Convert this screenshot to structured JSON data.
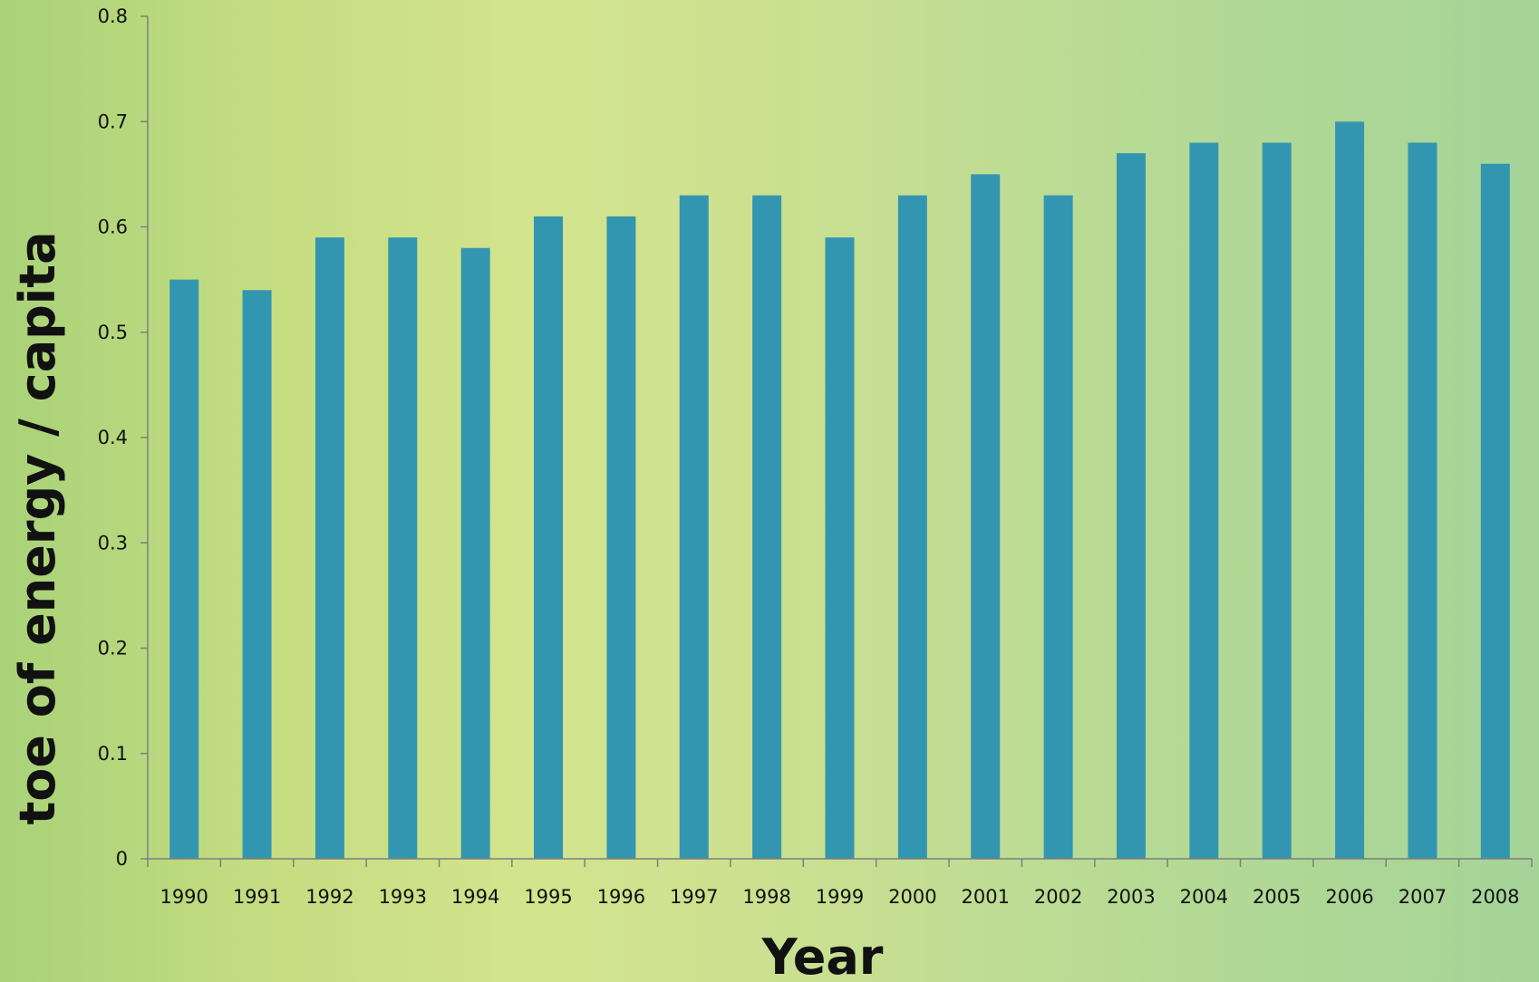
{
  "chart_data": {
    "type": "bar",
    "title": "",
    "xlabel": "Year",
    "ylabel": "toe of energy / capita",
    "categories": [
      "1990",
      "1991",
      "1992",
      "1993",
      "1994",
      "1995",
      "1996",
      "1997",
      "1998",
      "1999",
      "2000",
      "2001",
      "2002",
      "2003",
      "2004",
      "2005",
      "2006",
      "2007",
      "2008"
    ],
    "values": [
      0.55,
      0.54,
      0.59,
      0.59,
      0.58,
      0.61,
      0.61,
      0.63,
      0.63,
      0.59,
      0.63,
      0.65,
      0.63,
      0.67,
      0.68,
      0.68,
      0.7,
      0.68,
      0.66
    ],
    "ylim": [
      0,
      0.8
    ],
    "yticks": [
      "0",
      "0.1",
      "0.2",
      "0.3",
      "0.4",
      "0.5",
      "0.6",
      "0.7",
      "0.8"
    ],
    "grid": false,
    "legend": "none",
    "bar_color": "#3396b0",
    "axis_color": "#7f7f7f"
  }
}
